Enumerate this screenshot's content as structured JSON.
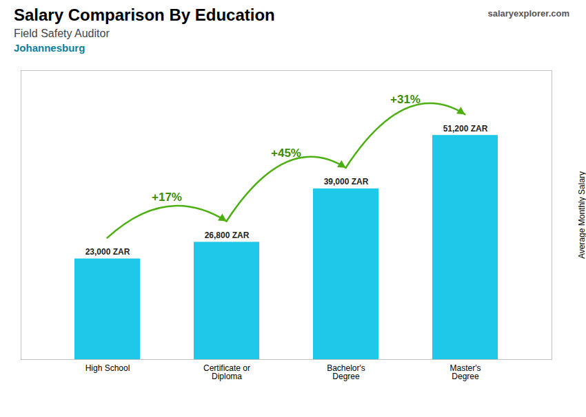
{
  "chart_data": {
    "type": "bar",
    "title": "Salary Comparison By Education",
    "subtitle": "Field Safety Auditor",
    "ylabel": "Average Monthly Salary",
    "categories": [
      "High School",
      "Certificate or\nDiploma",
      "Bachelor's\nDegree",
      "Master's\nDegree"
    ],
    "values": [
      23000,
      26800,
      39000,
      51200
    ],
    "value_labels": [
      "23,000 ZAR",
      "26,800 ZAR",
      "39,000 ZAR",
      "51,200 ZAR"
    ],
    "data_labels": true,
    "color": "#1ec8e8",
    "ylim": [
      0,
      66000
    ],
    "grid": false,
    "tick_labels": "x",
    "annotations": [
      {
        "text": "Johannesburg"
      },
      {
        "text": "salaryexplorer.com"
      },
      {
        "text": "+17%",
        "from": "High School",
        "to": "Certificate or\nDiploma"
      },
      {
        "text": "+45%",
        "from": "Certificate or\nDiploma",
        "to": "Bachelor's\nDegree"
      },
      {
        "text": "+31%",
        "from": "Bachelor's\nDegree",
        "to": "Master's\nDegree"
      }
    ]
  }
}
